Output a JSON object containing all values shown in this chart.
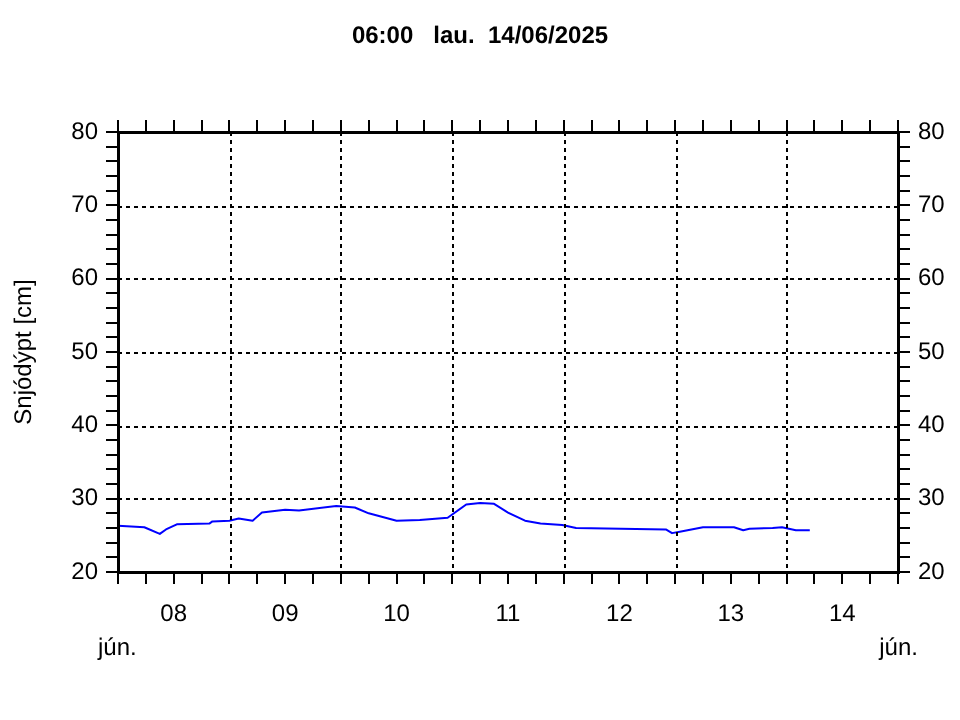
{
  "chart_data": {
    "type": "line",
    "title": "06:00   lau.  14/06/2025",
    "ylabel": "Snjódýpt [cm]",
    "annotations": [
      "jún.",
      "jún."
    ],
    "x": [
      "2025-06-08T00:00",
      "2025-06-08T05:40",
      "2025-06-08T09:00",
      "2025-06-08T10:20",
      "2025-06-08T12:40",
      "2025-06-08T19:40",
      "2025-06-08T20:20",
      "2025-06-09T00:00",
      "2025-06-09T02:00",
      "2025-06-09T05:00",
      "2025-06-09T07:00",
      "2025-06-09T12:00",
      "2025-06-09T15:00",
      "2025-06-09T23:00",
      "2025-06-10T03:00",
      "2025-06-10T06:00",
      "2025-06-10T12:00",
      "2025-06-10T17:00",
      "2025-06-10T23:00",
      "2025-06-11T03:00",
      "2025-06-11T06:00",
      "2025-06-11T09:00",
      "2025-06-11T12:00",
      "2025-06-11T15:40",
      "2025-06-11T19:00",
      "2025-06-11T23:40",
      "2025-06-12T02:40",
      "2025-06-12T22:00",
      "2025-06-12T23:20",
      "2025-06-13T01:00",
      "2025-06-13T06:00",
      "2025-06-13T12:40",
      "2025-06-13T14:40",
      "2025-06-13T16:00",
      "2025-06-13T21:00",
      "2025-06-13T23:00",
      "2025-06-14T02:00",
      "2025-06-14T05:00"
    ],
    "series": [
      {
        "color": "#0000ff",
        "values": [
          26.3,
          26.1,
          25.2,
          25.8,
          26.5,
          26.6,
          26.9,
          27.0,
          27.3,
          27.0,
          28.1,
          28.5,
          28.4,
          29.0,
          28.8,
          28.0,
          27.0,
          27.1,
          27.4,
          29.2,
          29.4,
          29.3,
          28.1,
          27.0,
          26.6,
          26.4,
          26.0,
          25.8,
          25.3,
          25.5,
          26.1,
          26.1,
          25.7,
          25.9,
          26.0,
          26.1,
          25.7,
          25.7
        ]
      }
    ],
    "xlim": [
      "2025-06-08T00:00",
      "2025-06-15T00:00"
    ],
    "xticks": [
      {
        "value": "2025-06-08T00:00",
        "label": null
      },
      {
        "value": "2025-06-08T06:00",
        "label": null
      },
      {
        "value": "2025-06-08T12:00",
        "label": "08"
      },
      {
        "value": "2025-06-08T18:00",
        "label": null
      },
      {
        "value": "2025-06-09T00:00",
        "label": null
      },
      {
        "value": "2025-06-09T06:00",
        "label": null
      },
      {
        "value": "2025-06-09T12:00",
        "label": "09"
      },
      {
        "value": "2025-06-09T18:00",
        "label": null
      },
      {
        "value": "2025-06-10T00:00",
        "label": null
      },
      {
        "value": "2025-06-10T06:00",
        "label": null
      },
      {
        "value": "2025-06-10T12:00",
        "label": "10"
      },
      {
        "value": "2025-06-10T18:00",
        "label": null
      },
      {
        "value": "2025-06-11T00:00",
        "label": null
      },
      {
        "value": "2025-06-11T06:00",
        "label": null
      },
      {
        "value": "2025-06-11T12:00",
        "label": "11"
      },
      {
        "value": "2025-06-11T18:00",
        "label": null
      },
      {
        "value": "2025-06-12T00:00",
        "label": null
      },
      {
        "value": "2025-06-12T06:00",
        "label": null
      },
      {
        "value": "2025-06-12T12:00",
        "label": "12"
      },
      {
        "value": "2025-06-12T18:00",
        "label": null
      },
      {
        "value": "2025-06-13T00:00",
        "label": null
      },
      {
        "value": "2025-06-13T06:00",
        "label": null
      },
      {
        "value": "2025-06-13T12:00",
        "label": "13"
      },
      {
        "value": "2025-06-13T18:00",
        "label": null
      },
      {
        "value": "2025-06-14T00:00",
        "label": null
      },
      {
        "value": "2025-06-14T06:00",
        "label": null
      },
      {
        "value": "2025-06-14T12:00",
        "label": "14"
      },
      {
        "value": "2025-06-14T18:00",
        "label": null
      },
      {
        "value": "2025-06-15T00:00",
        "label": null
      }
    ],
    "ylim": [
      20,
      80
    ],
    "yticks": [
      20,
      {
        "value": 22,
        "label": null
      },
      {
        "value": 24,
        "label": null
      },
      {
        "value": 26,
        "label": null
      },
      {
        "value": 28,
        "label": null
      },
      30,
      {
        "value": 32,
        "label": null
      },
      {
        "value": 34,
        "label": null
      },
      {
        "value": 36,
        "label": null
      },
      {
        "value": 38,
        "label": null
      },
      40,
      {
        "value": 42,
        "label": null
      },
      {
        "value": 44,
        "label": null
      },
      {
        "value": 46,
        "label": null
      },
      {
        "value": 48,
        "label": null
      },
      50,
      {
        "value": 52,
        "label": null
      },
      {
        "value": 54,
        "label": null
      },
      {
        "value": 56,
        "label": null
      },
      {
        "value": 58,
        "label": null
      },
      60,
      {
        "value": 62,
        "label": null
      },
      {
        "value": 64,
        "label": null
      },
      {
        "value": 66,
        "label": null
      },
      {
        "value": 68,
        "label": null
      },
      70,
      {
        "value": 72,
        "label": null
      },
      {
        "value": 74,
        "label": null
      },
      {
        "value": 76,
        "label": null
      },
      {
        "value": 78,
        "label": null
      },
      80
    ],
    "y2lim": [
      20,
      80
    ],
    "y2ticks": [
      20,
      {
        "value": 22,
        "label": null
      },
      {
        "value": 24,
        "label": null
      },
      {
        "value": 26,
        "label": null
      },
      {
        "value": 28,
        "label": null
      },
      30,
      {
        "value": 32,
        "label": null
      },
      {
        "value": 34,
        "label": null
      },
      {
        "value": 36,
        "label": null
      },
      {
        "value": 38,
        "label": null
      },
      40,
      {
        "value": 42,
        "label": null
      },
      {
        "value": 44,
        "label": null
      },
      {
        "value": 46,
        "label": null
      },
      {
        "value": 48,
        "label": null
      },
      50,
      {
        "value": 52,
        "label": null
      },
      {
        "value": 54,
        "label": null
      },
      {
        "value": 56,
        "label": null
      },
      {
        "value": 58,
        "label": null
      },
      60,
      {
        "value": 62,
        "label": null
      },
      {
        "value": 64,
        "label": null
      },
      {
        "value": 66,
        "label": null
      },
      {
        "value": 68,
        "label": null
      },
      70,
      {
        "value": 72,
        "label": null
      },
      {
        "value": 74,
        "label": null
      },
      {
        "value": 76,
        "label": null
      },
      {
        "value": 78,
        "label": null
      },
      80
    ],
    "grid": true,
    "legend": false,
    "marker": "none",
    "line_style": "solid"
  }
}
